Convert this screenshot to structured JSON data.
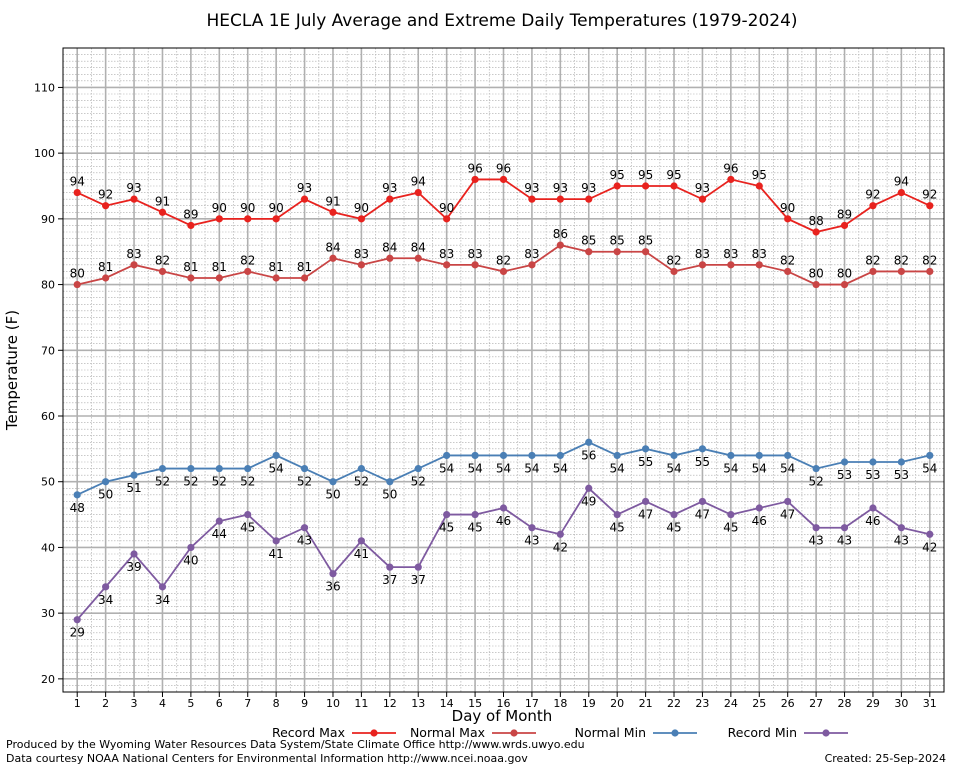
{
  "chart_data": {
    "type": "line",
    "title": "HECLA 1E July Average and Extreme Daily Temperatures (1979-2024)",
    "xlabel": "Day of Month",
    "ylabel": "Temperature (F)",
    "xlim": [
      0.5,
      31.5
    ],
    "ylim": [
      18,
      116
    ],
    "y_ticks": [
      20,
      30,
      40,
      50,
      60,
      70,
      80,
      90,
      100,
      110
    ],
    "x": [
      1,
      2,
      3,
      4,
      5,
      6,
      7,
      8,
      9,
      10,
      11,
      12,
      13,
      14,
      15,
      16,
      17,
      18,
      19,
      20,
      21,
      22,
      23,
      24,
      25,
      26,
      27,
      28,
      29,
      30,
      31
    ],
    "grid": true,
    "legend_position": "bottom",
    "series": [
      {
        "name": "Record Max",
        "color": "#e8221e",
        "label_pos": "above",
        "values": [
          94,
          92,
          93,
          91,
          89,
          90,
          90,
          90,
          93,
          91,
          90,
          93,
          94,
          90,
          96,
          96,
          93,
          93,
          93,
          95,
          95,
          95,
          93,
          96,
          95,
          90,
          88,
          89,
          92,
          94,
          92
        ]
      },
      {
        "name": "Normal Max",
        "color": "#c94545",
        "label_pos": "above",
        "values": [
          80,
          81,
          83,
          82,
          81,
          81,
          82,
          81,
          81,
          84,
          83,
          84,
          84,
          83,
          83,
          82,
          83,
          86,
          85,
          85,
          85,
          82,
          83,
          83,
          83,
          82,
          80,
          80,
          82,
          82,
          82
        ]
      },
      {
        "name": "Normal Min",
        "color": "#4a7fb5",
        "label_pos": "below",
        "values": [
          48,
          50,
          51,
          52,
          52,
          52,
          52,
          54,
          52,
          50,
          52,
          50,
          52,
          54,
          54,
          54,
          54,
          54,
          56,
          54,
          55,
          54,
          55,
          54,
          54,
          54,
          52,
          53,
          53,
          53,
          54
        ]
      },
      {
        "name": "Record Min",
        "color": "#7e5aa0",
        "label_pos": "below",
        "values": [
          29,
          34,
          39,
          34,
          40,
          44,
          45,
          41,
          43,
          36,
          41,
          37,
          37,
          45,
          45,
          46,
          43,
          42,
          49,
          45,
          47,
          45,
          47,
          45,
          46,
          47,
          43,
          43,
          46,
          43,
          42
        ]
      }
    ]
  },
  "footer": {
    "producer": "Produced by the Wyoming Water Resources Data System/State Climate Office http://www.wrds.uwyo.edu",
    "courtesy": "Data courtesy NOAA National Centers for Environmental Information http://www.ncei.noaa.gov",
    "created": "Created: 25-Sep-2024"
  }
}
